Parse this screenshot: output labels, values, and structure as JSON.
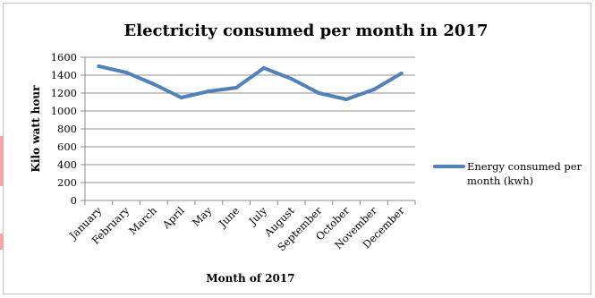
{
  "chart_data": {
    "type": "line",
    "title": "Electricity consumed per month in 2017",
    "xlabel": "Month of 2017",
    "ylabel": "Kilo watt hour",
    "ylim": [
      0,
      1600
    ],
    "yticks": [
      0,
      200,
      400,
      600,
      800,
      1000,
      1200,
      1400,
      1600
    ],
    "categories": [
      "January",
      "February",
      "March",
      "April",
      "May",
      "June",
      "July",
      "August",
      "September",
      "October",
      "November",
      "December"
    ],
    "series": [
      {
        "name": "Energy consumed per month (kwh)",
        "name_lines": [
          "Energy consumed per",
          "month (kwh)"
        ],
        "color": "#4f81bd",
        "values": [
          1500,
          1430,
          1300,
          1150,
          1220,
          1260,
          1480,
          1360,
          1200,
          1130,
          1240,
          1420
        ]
      }
    ],
    "grid": "horizontal",
    "legend_position": "right"
  }
}
